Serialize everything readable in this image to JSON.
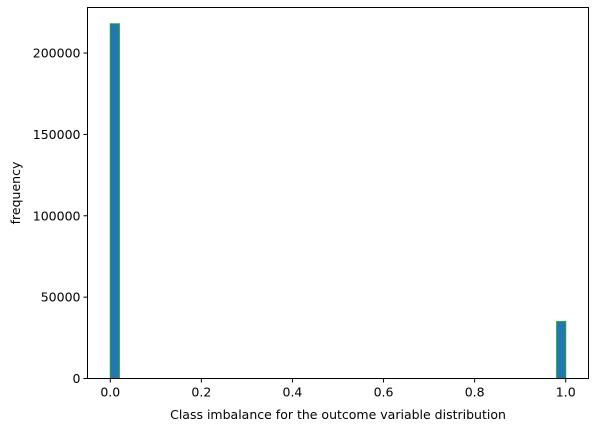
{
  "chart_data": {
    "type": "bar",
    "subtype": "histogram",
    "title": "",
    "xlabel": "Class imbalance for the outcome variable distribution",
    "ylabel": "frequency",
    "xlim": [
      -0.05,
      1.05
    ],
    "ylim": [
      0,
      228000
    ],
    "xticks": [
      0.0,
      0.2,
      0.4,
      0.6,
      0.8,
      1.0
    ],
    "xtick_labels": [
      "0.0",
      "0.2",
      "0.4",
      "0.6",
      "0.8",
      "1.0"
    ],
    "yticks": [
      0,
      50000,
      100000,
      150000,
      200000
    ],
    "ytick_labels": [
      "0",
      "50000",
      "100000",
      "150000",
      "200000"
    ],
    "bins": [
      {
        "x0": 0.0,
        "x1": 0.02,
        "value": 218000
      },
      {
        "x0": 0.98,
        "x1": 1.0,
        "value": 35000
      }
    ],
    "bar_color": "#1f77b4",
    "edge_color": "#2ca02c",
    "grid": false,
    "legend": "none"
  }
}
